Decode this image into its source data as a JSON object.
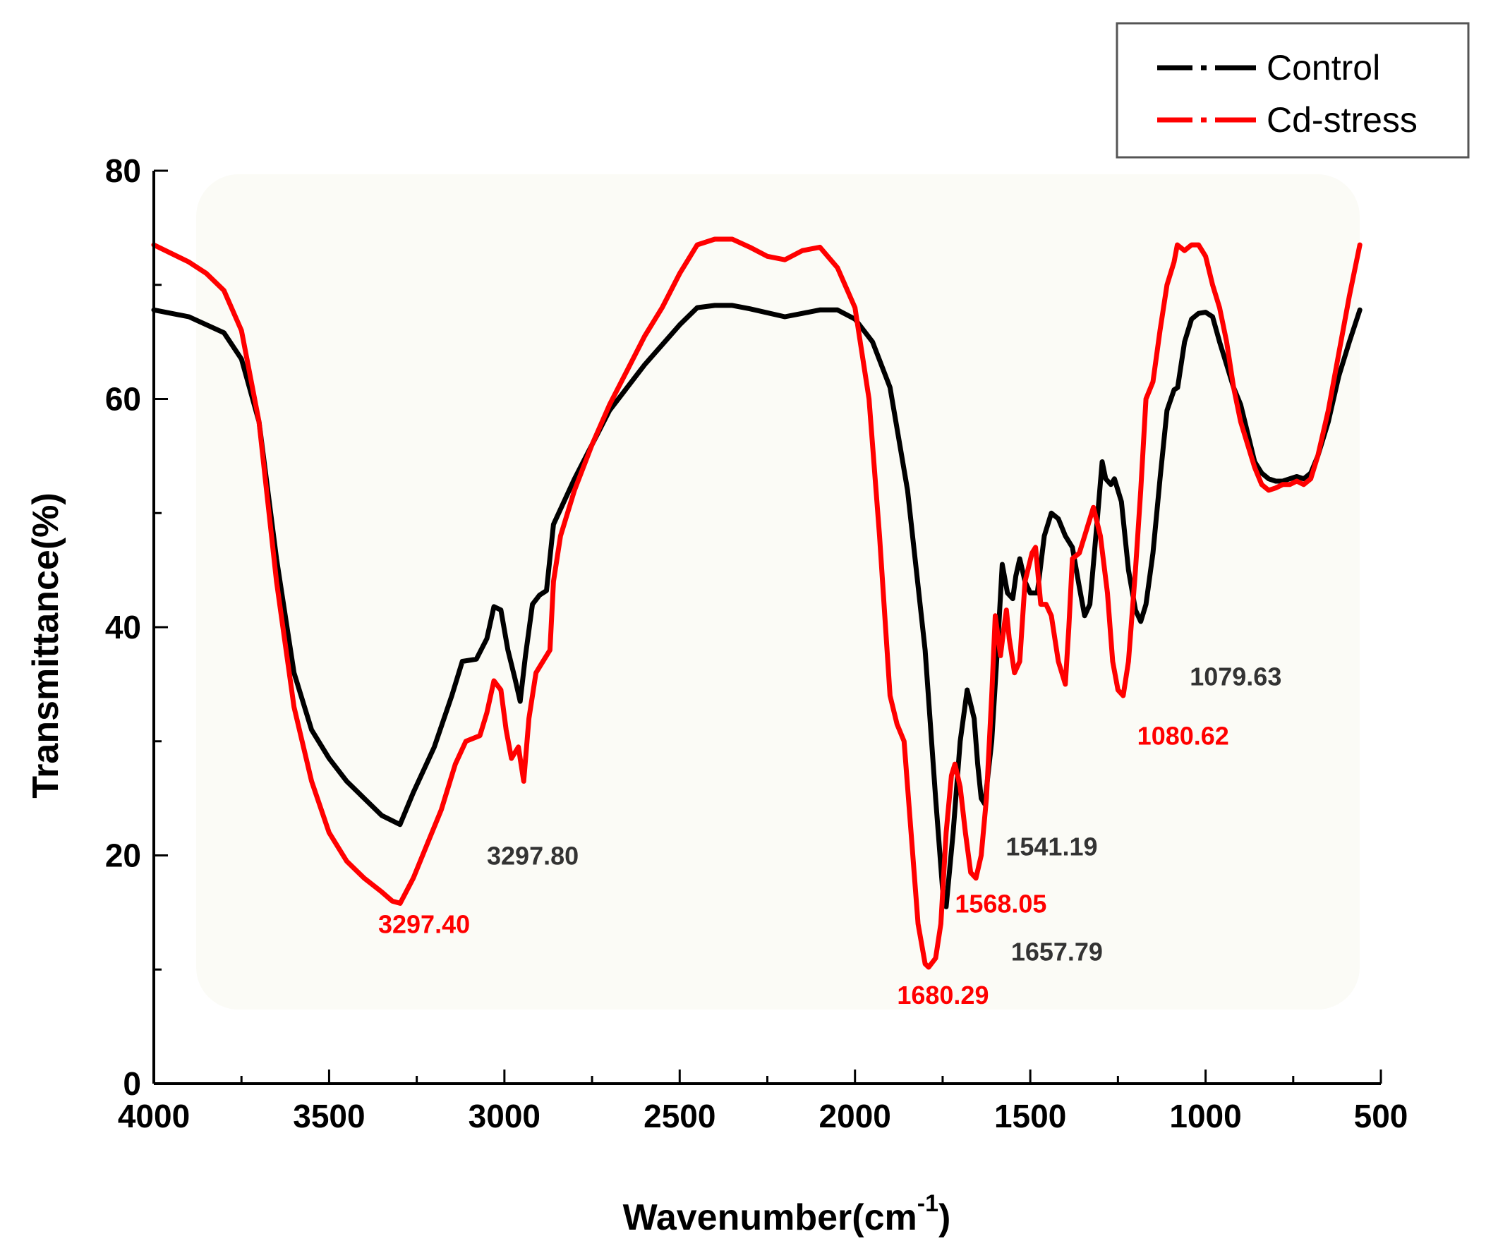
{
  "chart_data": {
    "type": "line",
    "title": "",
    "xlabel": "Wavenumber(cm",
    "xlabel_sup": "-1",
    "xlabel_close": ")",
    "ylabel": "Transmittance(%)",
    "xlim": [
      4000,
      500
    ],
    "ylim": [
      0,
      80
    ],
    "x_ticks": [
      4000,
      3500,
      3000,
      2500,
      2000,
      1500,
      1000,
      500
    ],
    "y_ticks": [
      0,
      20,
      40,
      60,
      80
    ],
    "legend_position": "top-right",
    "series": [
      {
        "name": "Control",
        "color": "#000000",
        "points": [
          [
            4000,
            67.8
          ],
          [
            3900,
            67.2
          ],
          [
            3800,
            65.8
          ],
          [
            3750,
            63.5
          ],
          [
            3700,
            58
          ],
          [
            3650,
            46
          ],
          [
            3600,
            36
          ],
          [
            3550,
            31
          ],
          [
            3500,
            28.5
          ],
          [
            3450,
            26.5
          ],
          [
            3400,
            25
          ],
          [
            3350,
            23.5
          ],
          [
            3297.8,
            22.7
          ],
          [
            3260,
            25.5
          ],
          [
            3200,
            29.5
          ],
          [
            3150,
            34
          ],
          [
            3120,
            37
          ],
          [
            3080,
            37.2
          ],
          [
            3050,
            39
          ],
          [
            3030,
            41.8
          ],
          [
            3010,
            41.5
          ],
          [
            2990,
            38
          ],
          [
            2970,
            35.5
          ],
          [
            2955,
            33.5
          ],
          [
            2940,
            37.5
          ],
          [
            2920,
            42
          ],
          [
            2900,
            42.8
          ],
          [
            2880,
            43.2
          ],
          [
            2860,
            49
          ],
          [
            2800,
            53
          ],
          [
            2750,
            56
          ],
          [
            2700,
            59
          ],
          [
            2650,
            61
          ],
          [
            2600,
            63
          ],
          [
            2500,
            66.5
          ],
          [
            2450,
            68
          ],
          [
            2400,
            68.2
          ],
          [
            2350,
            68.2
          ],
          [
            2300,
            67.9
          ],
          [
            2200,
            67.2
          ],
          [
            2150,
            67.5
          ],
          [
            2100,
            67.8
          ],
          [
            2050,
            67.8
          ],
          [
            2000,
            67
          ],
          [
            1950,
            65
          ],
          [
            1900,
            61
          ],
          [
            1850,
            52
          ],
          [
            1800,
            38
          ],
          [
            1770,
            25
          ],
          [
            1750,
            17
          ],
          [
            1740,
            15.5
          ],
          [
            1720,
            22
          ],
          [
            1700,
            30
          ],
          [
            1680,
            34.5
          ],
          [
            1660,
            32
          ],
          [
            1650,
            28
          ],
          [
            1640,
            25
          ],
          [
            1630,
            24.5
          ],
          [
            1610,
            30
          ],
          [
            1590,
            40
          ],
          [
            1580,
            45.5
          ],
          [
            1565,
            43
          ],
          [
            1550,
            42.5
          ],
          [
            1541.19,
            44.5
          ],
          [
            1530,
            46
          ],
          [
            1515,
            44
          ],
          [
            1500,
            43
          ],
          [
            1480,
            43
          ],
          [
            1460,
            48
          ],
          [
            1440,
            50
          ],
          [
            1420,
            49.5
          ],
          [
            1400,
            48
          ],
          [
            1380,
            47
          ],
          [
            1360,
            43.5
          ],
          [
            1345,
            41
          ],
          [
            1330,
            42
          ],
          [
            1310,
            49
          ],
          [
            1295,
            54.5
          ],
          [
            1285,
            53
          ],
          [
            1270,
            52.5
          ],
          [
            1260,
            53
          ],
          [
            1240,
            51
          ],
          [
            1220,
            45
          ],
          [
            1200,
            41.5
          ],
          [
            1185,
            40.5
          ],
          [
            1170,
            42
          ],
          [
            1150,
            46.5
          ],
          [
            1130,
            53
          ],
          [
            1110,
            59
          ],
          [
            1090,
            60.8
          ],
          [
            1079.63,
            61
          ],
          [
            1060,
            65
          ],
          [
            1040,
            67
          ],
          [
            1020,
            67.5
          ],
          [
            1000,
            67.6
          ],
          [
            980,
            67.2
          ],
          [
            960,
            65
          ],
          [
            940,
            63
          ],
          [
            920,
            61
          ],
          [
            900,
            59.5
          ],
          [
            880,
            57
          ],
          [
            860,
            54.5
          ],
          [
            840,
            53.5
          ],
          [
            820,
            53
          ],
          [
            800,
            52.8
          ],
          [
            780,
            52.8
          ],
          [
            760,
            53
          ],
          [
            740,
            53.2
          ],
          [
            720,
            53
          ],
          [
            700,
            53.5
          ],
          [
            680,
            55
          ],
          [
            650,
            58
          ],
          [
            620,
            62
          ],
          [
            590,
            65
          ],
          [
            560,
            67.8
          ]
        ]
      },
      {
        "name": "Cd-stress",
        "color": "#ff0000",
        "points": [
          [
            4000,
            73.5
          ],
          [
            3900,
            72
          ],
          [
            3850,
            71
          ],
          [
            3800,
            69.5
          ],
          [
            3750,
            66
          ],
          [
            3700,
            58
          ],
          [
            3650,
            44
          ],
          [
            3600,
            33
          ],
          [
            3550,
            26.5
          ],
          [
            3500,
            22
          ],
          [
            3450,
            19.5
          ],
          [
            3400,
            18
          ],
          [
            3350,
            16.8
          ],
          [
            3320,
            16
          ],
          [
            3297.4,
            15.8
          ],
          [
            3260,
            18
          ],
          [
            3220,
            21
          ],
          [
            3180,
            24
          ],
          [
            3140,
            28
          ],
          [
            3110,
            30
          ],
          [
            3070,
            30.5
          ],
          [
            3050,
            32.5
          ],
          [
            3030,
            35.3
          ],
          [
            3010,
            34.5
          ],
          [
            2995,
            31
          ],
          [
            2980,
            28.5
          ],
          [
            2960,
            29.5
          ],
          [
            2945,
            26.5
          ],
          [
            2930,
            32
          ],
          [
            2910,
            36
          ],
          [
            2890,
            37
          ],
          [
            2870,
            38
          ],
          [
            2860,
            44
          ],
          [
            2840,
            48
          ],
          [
            2800,
            52
          ],
          [
            2750,
            56
          ],
          [
            2700,
            59.5
          ],
          [
            2650,
            62.5
          ],
          [
            2600,
            65.5
          ],
          [
            2550,
            68
          ],
          [
            2500,
            71
          ],
          [
            2450,
            73.5
          ],
          [
            2400,
            74
          ],
          [
            2350,
            74
          ],
          [
            2300,
            73.3
          ],
          [
            2250,
            72.5
          ],
          [
            2200,
            72.2
          ],
          [
            2150,
            73
          ],
          [
            2100,
            73.3
          ],
          [
            2050,
            71.5
          ],
          [
            2000,
            68
          ],
          [
            1960,
            60
          ],
          [
            1930,
            48
          ],
          [
            1900,
            34
          ],
          [
            1880,
            31.5
          ],
          [
            1860,
            30
          ],
          [
            1840,
            22
          ],
          [
            1820,
            14
          ],
          [
            1800,
            10.5
          ],
          [
            1790,
            10.2
          ],
          [
            1770,
            11
          ],
          [
            1755,
            14
          ],
          [
            1740,
            22
          ],
          [
            1725,
            27
          ],
          [
            1715,
            28
          ],
          [
            1700,
            26
          ],
          [
            1685,
            22
          ],
          [
            1670,
            18.5
          ],
          [
            1655,
            18
          ],
          [
            1640,
            20
          ],
          [
            1625,
            25
          ],
          [
            1610,
            34
          ],
          [
            1600,
            41
          ],
          [
            1585,
            37.5
          ],
          [
            1575,
            40
          ],
          [
            1568.05,
            41.5
          ],
          [
            1560,
            39
          ],
          [
            1545,
            36
          ],
          [
            1530,
            37
          ],
          [
            1515,
            44
          ],
          [
            1495,
            46.5
          ],
          [
            1485,
            47
          ],
          [
            1470,
            42
          ],
          [
            1455,
            42
          ],
          [
            1440,
            41
          ],
          [
            1420,
            37
          ],
          [
            1400,
            35
          ],
          [
            1390,
            40
          ],
          [
            1380,
            46
          ],
          [
            1360,
            46.5
          ],
          [
            1345,
            48
          ],
          [
            1320,
            50.5
          ],
          [
            1300,
            48
          ],
          [
            1280,
            43
          ],
          [
            1265,
            37
          ],
          [
            1250,
            34.5
          ],
          [
            1235,
            34
          ],
          [
            1220,
            37
          ],
          [
            1200,
            45
          ],
          [
            1185,
            52
          ],
          [
            1170,
            60
          ],
          [
            1150,
            61.5
          ],
          [
            1130,
            66
          ],
          [
            1110,
            70
          ],
          [
            1090,
            72
          ],
          [
            1080.62,
            73.5
          ],
          [
            1060,
            73
          ],
          [
            1040,
            73.5
          ],
          [
            1020,
            73.5
          ],
          [
            1000,
            72.5
          ],
          [
            980,
            70
          ],
          [
            960,
            68
          ],
          [
            940,
            65
          ],
          [
            920,
            61
          ],
          [
            900,
            58
          ],
          [
            880,
            56
          ],
          [
            860,
            54
          ],
          [
            840,
            52.5
          ],
          [
            820,
            52
          ],
          [
            800,
            52.2
          ],
          [
            780,
            52.5
          ],
          [
            760,
            52.5
          ],
          [
            740,
            52.8
          ],
          [
            720,
            52.5
          ],
          [
            700,
            53
          ],
          [
            680,
            55
          ],
          [
            650,
            59
          ],
          [
            620,
            64
          ],
          [
            590,
            69
          ],
          [
            560,
            73.5
          ]
        ]
      }
    ],
    "annotations": [
      {
        "text": "3297.80",
        "series": "Control",
        "color": "#333333",
        "x": 3050,
        "y": 19.2
      },
      {
        "text": "3297.40",
        "series": "Cd-stress",
        "color": "#ff0000",
        "x": 3360,
        "y": 13.2
      },
      {
        "text": "1541.19",
        "series": "Control",
        "color": "#333333",
        "x": 1570,
        "y": 20
      },
      {
        "text": "1568.05",
        "series": "Cd-stress",
        "color": "#ff0000",
        "x": 1715,
        "y": 15
      },
      {
        "text": "1657.79",
        "series": "Control",
        "color": "#333333",
        "x": 1555,
        "y": 10.8
      },
      {
        "text": "1680.29",
        "series": "Cd-stress",
        "color": "#ff0000",
        "x": 1880,
        "y": 7
      },
      {
        "text": "1079.63",
        "series": "Control",
        "color": "#333333",
        "x": 1045,
        "y": 34.9
      },
      {
        "text": "1080.62",
        "series": "Cd-stress",
        "color": "#ff0000",
        "x": 1195,
        "y": 29.7
      }
    ]
  }
}
